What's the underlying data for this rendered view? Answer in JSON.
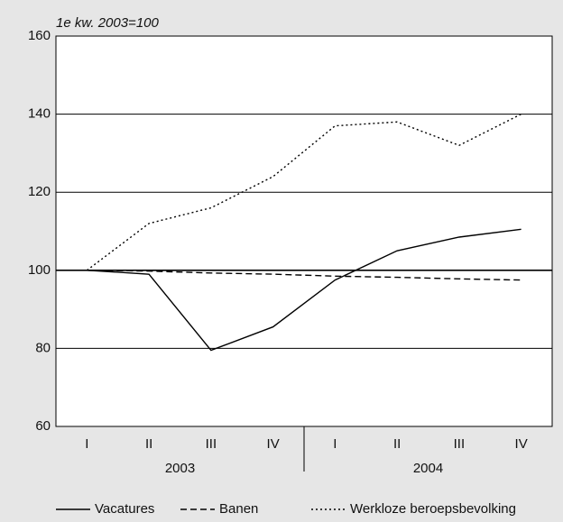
{
  "chart_data": {
    "type": "line",
    "ylabel": "1e kw. 2003=100",
    "categories": [
      "I",
      "II",
      "III",
      "IV",
      "I",
      "II",
      "III",
      "IV"
    ],
    "groups": [
      "2003",
      "2004"
    ],
    "ylim": [
      60,
      160
    ],
    "yticks": [
      60,
      80,
      100,
      120,
      140,
      160
    ],
    "grid": true,
    "series": [
      {
        "name": "Vacatures",
        "color": "#000000",
        "dash": "solid",
        "values": [
          100,
          99,
          79.5,
          85.5,
          97.5,
          105,
          108.5,
          110.5
        ]
      },
      {
        "name": "Banen",
        "color": "#000000",
        "dash": "dashed",
        "values": [
          100,
          99.8,
          99.3,
          99,
          98.5,
          98.2,
          97.8,
          97.5
        ]
      },
      {
        "name": "Werkloze beroepsbevolking",
        "color": "#000000",
        "dash": "dotted",
        "values": [
          100,
          112,
          116,
          124,
          137,
          138,
          132,
          140
        ]
      }
    ]
  }
}
